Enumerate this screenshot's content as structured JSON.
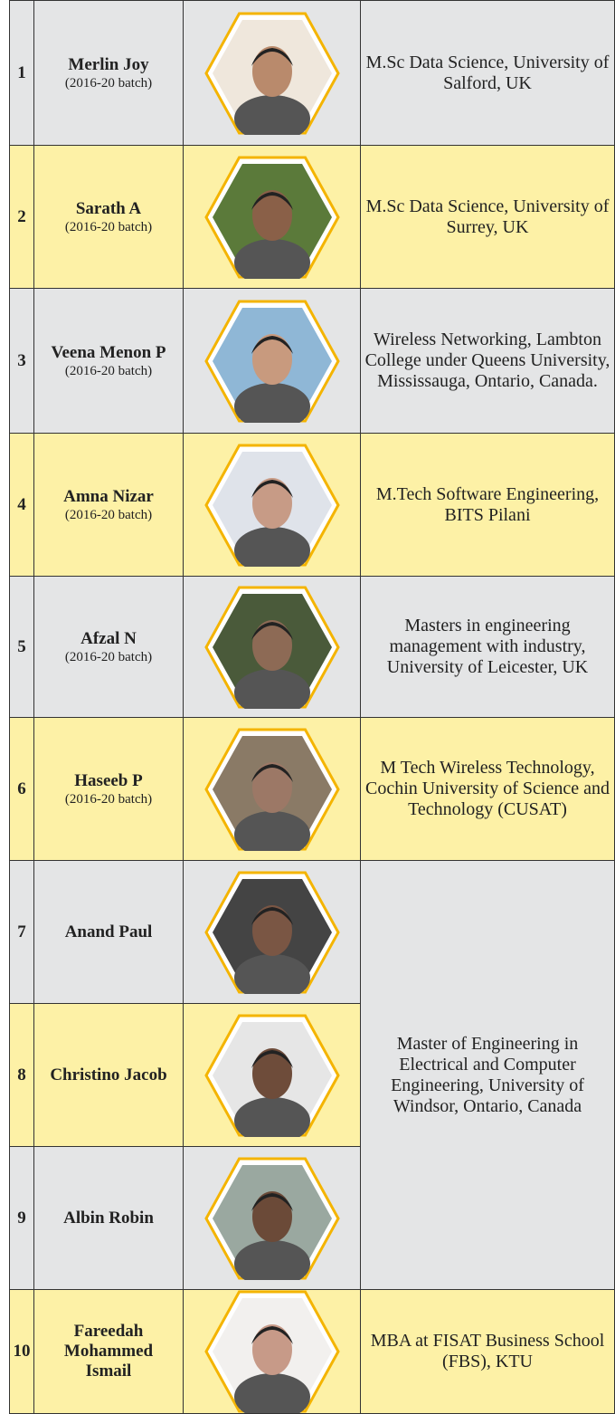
{
  "table": {
    "rows": [
      {
        "number": "1",
        "name": "Merlin Joy",
        "batch": "(2016-20 batch)",
        "program": "M.Sc Data Science, University of Salford, UK"
      },
      {
        "number": "2",
        "name": "Sarath A",
        "batch": "(2016-20 batch)",
        "program": "M.Sc Data Science, University of Surrey, UK"
      },
      {
        "number": "3",
        "name": "Veena Menon P",
        "batch": "(2016-20 batch)",
        "program": "Wireless Networking, Lambton College under Queens University, Mississauga, Ontario, Canada."
      },
      {
        "number": "4",
        "name": "Amna Nizar",
        "batch": "(2016-20 batch)",
        "program": "M.Tech Software Engineering, BITS Pilani"
      },
      {
        "number": "5",
        "name": "Afzal N",
        "batch": "(2016-20 batch)",
        "program": "Masters in engineering management with industry, University of Leicester, UK"
      },
      {
        "number": "6",
        "name": "Haseeb P",
        "batch": "(2016-20 batch)",
        "program": "M Tech Wireless Technology, Cochin University of Science and Technology (CUSAT)"
      },
      {
        "number": "7",
        "name": "Anand Paul",
        "program": "Master of Engineering in Electrical and Computer Engineering, University of Windsor, Ontario, Canada"
      },
      {
        "number": "8",
        "name": "Christino Jacob"
      },
      {
        "number": "9",
        "name": "Albin Robin"
      },
      {
        "number": "10",
        "name": "Fareedah Mohammed Ismail",
        "program": "MBA at FISAT Business School (FBS), KTU"
      }
    ]
  }
}
